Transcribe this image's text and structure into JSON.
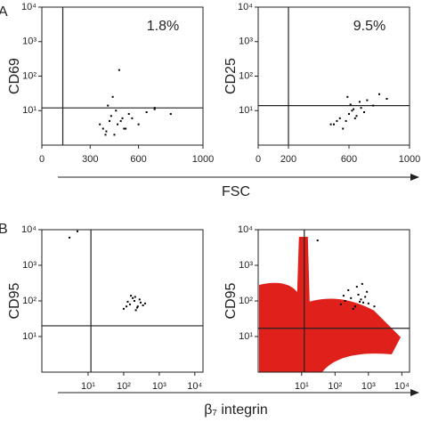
{
  "panel_labels": [
    "A",
    "B"
  ],
  "shared_xlabels": [
    "FSC",
    "β₇ integrin"
  ],
  "chart_data": [
    {
      "type": "scatter",
      "ylabel": "CD69",
      "annotation": "1.8%",
      "xscale": "linear",
      "yscale": "log",
      "xlim": [
        0,
        1000
      ],
      "ylim": [
        1,
        10000
      ],
      "xticks": [
        0,
        300,
        600,
        1000
      ],
      "yticks": [
        {
          "value": 10,
          "label": "10¹"
        },
        {
          "value": 100,
          "label": "10²"
        },
        {
          "value": 1000,
          "label": "10³"
        },
        {
          "value": 10000,
          "label": "10⁴"
        }
      ],
      "gate_x": 130,
      "gate_y": 12,
      "color": "#000000",
      "x": [
        380,
        420,
        450,
        470,
        500,
        520,
        540,
        360,
        400,
        430,
        460,
        490,
        510,
        560,
        600,
        650,
        700,
        480,
        440,
        410,
        395,
        700,
        800
      ],
      "y": [
        3,
        5,
        2,
        4,
        6,
        3,
        8,
        4,
        2.5,
        7,
        10,
        5,
        3,
        6,
        4,
        9,
        12,
        150,
        25,
        14,
        2,
        11,
        8
      ]
    },
    {
      "type": "scatter",
      "ylabel": "CD25",
      "annotation": "9.5%",
      "xscale": "linear",
      "yscale": "log",
      "xlim": [
        0,
        1000
      ],
      "ylim": [
        1,
        10000
      ],
      "xticks": [
        0,
        200,
        600,
        1000
      ],
      "yticks": [
        {
          "value": 10,
          "label": "10¹"
        },
        {
          "value": 100,
          "label": "10²"
        },
        {
          "value": 1000,
          "label": "10³"
        },
        {
          "value": 10000,
          "label": "10⁴"
        }
      ],
      "gate_x": 200,
      "gate_y": 14,
      "color": "#000000",
      "x": [
        500,
        540,
        580,
        600,
        620,
        650,
        680,
        700,
        560,
        610,
        640,
        720,
        760,
        520,
        590,
        630,
        670,
        800,
        850,
        480
      ],
      "y": [
        4,
        6,
        5,
        8,
        10,
        7,
        12,
        9,
        3,
        15,
        6,
        20,
        14,
        5,
        25,
        11,
        18,
        30,
        22,
        4
      ]
    },
    {
      "type": "scatter",
      "ylabel": "CD95",
      "xscale": "log",
      "yscale": "log",
      "xlim": [
        0.5,
        17000
      ],
      "ylim": [
        1,
        10000
      ],
      "xticks": [
        {
          "value": 10,
          "label": "10¹"
        },
        {
          "value": 100,
          "label": "10²"
        },
        {
          "value": 1000,
          "label": "10³"
        },
        {
          "value": 10000,
          "label": "10⁴"
        }
      ],
      "yticks": [
        {
          "value": 10,
          "label": "10¹"
        },
        {
          "value": 100,
          "label": "10²"
        },
        {
          "value": 1000,
          "label": "10³"
        },
        {
          "value": 10000,
          "label": "10⁴"
        }
      ],
      "gate_x": 12,
      "gate_y": 20,
      "color": "#000000",
      "x": [
        100,
        150,
        200,
        250,
        300,
        180,
        220,
        130,
        280,
        350,
        160,
        240,
        400,
        120,
        210,
        3,
        5
      ],
      "y": [
        60,
        80,
        100,
        70,
        90,
        120,
        55,
        95,
        110,
        75,
        140,
        65,
        85,
        70,
        130,
        6000,
        9000
      ]
    },
    {
      "type": "scatter",
      "ylabel": "CD95",
      "xscale": "log",
      "yscale": "log",
      "xlim": [
        0.5,
        17000
      ],
      "ylim": [
        1,
        10000
      ],
      "xticks": [
        {
          "value": 10,
          "label": "10¹"
        },
        {
          "value": 100,
          "label": "10²"
        },
        {
          "value": 1000,
          "label": "10³"
        },
        {
          "value": 10000,
          "label": "10⁴"
        }
      ],
      "yticks": [
        {
          "value": 10,
          "label": "10¹"
        },
        {
          "value": 100,
          "label": "10²"
        },
        {
          "value": 1000,
          "label": "10³"
        },
        {
          "value": 10000,
          "label": "10⁴"
        }
      ],
      "gate_x": 12,
      "gate_y": 17,
      "color": "#000000",
      "density_color": "#e0201b",
      "x": [
        150,
        200,
        300,
        400,
        500,
        700,
        250,
        350,
        600,
        800,
        1000,
        180,
        450,
        550,
        900,
        1500,
        650,
        30
      ],
      "y": [
        80,
        100,
        120,
        70,
        150,
        90,
        200,
        60,
        110,
        130,
        85,
        140,
        250,
        95,
        180,
        70,
        300,
        5000
      ]
    }
  ]
}
